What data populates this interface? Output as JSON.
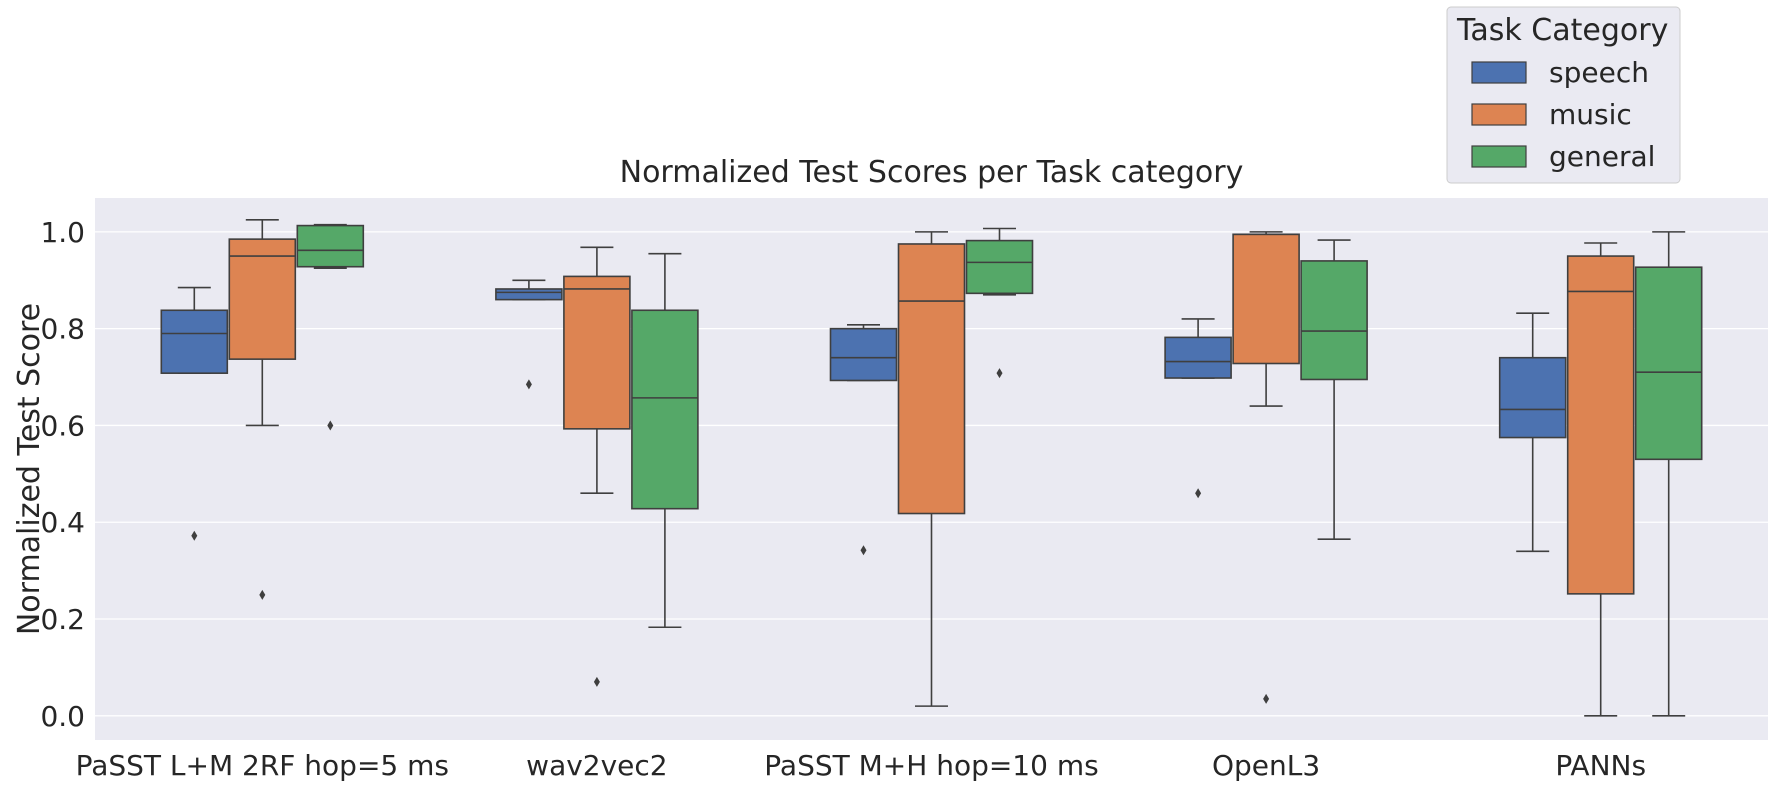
{
  "chart_data": {
    "type": "boxplot",
    "title": "Normalized Test Scores per Task category",
    "xlabel": "",
    "ylabel": "Normalized Test Score",
    "ylim": [
      -0.05,
      1.07
    ],
    "yticks": [
      0.0,
      0.2,
      0.4,
      0.6,
      0.8,
      1.0
    ],
    "ytick_labels": [
      "0.0",
      "0.2",
      "0.4",
      "0.6",
      "0.8",
      "1.0"
    ],
    "grid": true,
    "legend": {
      "title": "Task Category",
      "position": "top-right, above plot",
      "entries": [
        "speech",
        "music",
        "general"
      ]
    },
    "categories": [
      "PaSST L+M 2RF hop=5 ms",
      "wav2vec2",
      "PaSST M+H hop=10 ms",
      "OpenL3",
      "PANNs"
    ],
    "series": [
      {
        "name": "speech",
        "color": "#4c72b0",
        "boxes": [
          {
            "whislo": 0.708,
            "q1": 0.708,
            "med": 0.79,
            "q3": 0.838,
            "whishi": 0.885,
            "fliers": [
              0.372
            ]
          },
          {
            "whislo": 0.86,
            "q1": 0.86,
            "med": 0.875,
            "q3": 0.882,
            "whishi": 0.9,
            "fliers": [
              0.685
            ]
          },
          {
            "whislo": 0.693,
            "q1": 0.693,
            "med": 0.74,
            "q3": 0.8,
            "whishi": 0.808,
            "fliers": [
              0.342
            ]
          },
          {
            "whislo": 0.698,
            "q1": 0.698,
            "med": 0.732,
            "q3": 0.782,
            "whishi": 0.82,
            "fliers": [
              0.46
            ]
          },
          {
            "whislo": 0.34,
            "q1": 0.575,
            "med": 0.633,
            "q3": 0.74,
            "whishi": 0.832,
            "fliers": []
          }
        ]
      },
      {
        "name": "music",
        "color": "#dd8452",
        "boxes": [
          {
            "whislo": 0.6,
            "q1": 0.737,
            "med": 0.95,
            "q3": 0.985,
            "whishi": 1.025,
            "fliers": [
              0.25
            ]
          },
          {
            "whislo": 0.46,
            "q1": 0.593,
            "med": 0.882,
            "q3": 0.908,
            "whishi": 0.968,
            "fliers": [
              0.07
            ]
          },
          {
            "whislo": 0.02,
            "q1": 0.418,
            "med": 0.857,
            "q3": 0.975,
            "whishi": 1.0,
            "fliers": []
          },
          {
            "whislo": 0.64,
            "q1": 0.728,
            "med": 0.995,
            "q3": 0.995,
            "whishi": 1.0,
            "fliers": [
              0.035
            ]
          },
          {
            "whislo": 0.0,
            "q1": 0.252,
            "med": 0.877,
            "q3": 0.95,
            "whishi": 0.977,
            "fliers": []
          }
        ]
      },
      {
        "name": "general",
        "color": "#55a868",
        "boxes": [
          {
            "whislo": 0.925,
            "q1": 0.928,
            "med": 0.962,
            "q3": 1.013,
            "whishi": 1.015,
            "fliers": [
              0.6
            ]
          },
          {
            "whislo": 0.183,
            "q1": 0.428,
            "med": 0.657,
            "q3": 0.838,
            "whishi": 0.955,
            "fliers": []
          },
          {
            "whislo": 0.87,
            "q1": 0.873,
            "med": 0.937,
            "q3": 0.982,
            "whishi": 1.007,
            "fliers": [
              0.708
            ]
          },
          {
            "whislo": 0.365,
            "q1": 0.695,
            "med": 0.795,
            "q3": 0.94,
            "whishi": 0.983,
            "fliers": []
          },
          {
            "whislo": 0.0,
            "q1": 0.53,
            "med": 0.71,
            "q3": 0.927,
            "whishi": 1.0,
            "fliers": []
          }
        ]
      }
    ]
  }
}
